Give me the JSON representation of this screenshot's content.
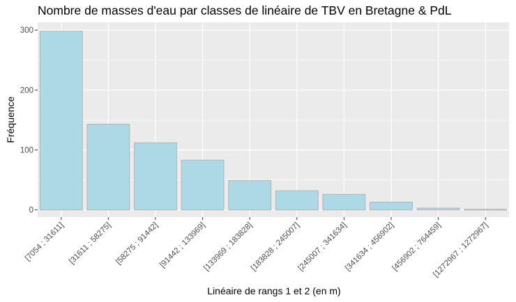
{
  "chart_data": {
    "type": "bar",
    "title": "Nombre de masses d'eau par classes de linéaire de TBV en Bretagne & PdL",
    "xlabel": "Linéaire de rangs 1 et 2 (en m)",
    "ylabel": "Fréquence",
    "categories": [
      "[7054 ; 31611]",
      "[31611 ; 58275]",
      "[58275 ; 91442]",
      "[91442 ; 133969]",
      "[133969 ; 183828]",
      "[183828 ; 245007]",
      "[245007 ; 341634]",
      "[341634 ; 456902]",
      "[456902 ; 764459]",
      "[1272967 ; 1272967]"
    ],
    "values": [
      298,
      143,
      112,
      83,
      49,
      32,
      26,
      13,
      3,
      1
    ],
    "ylim": [
      -12,
      313
    ],
    "yticks": [
      0,
      100,
      200,
      300
    ],
    "grid": true,
    "bar_fill": "#add8e6",
    "bar_stroke": "#b3b3b3",
    "panel_background": "#ebebeb",
    "grid_color": "#ffffff"
  }
}
